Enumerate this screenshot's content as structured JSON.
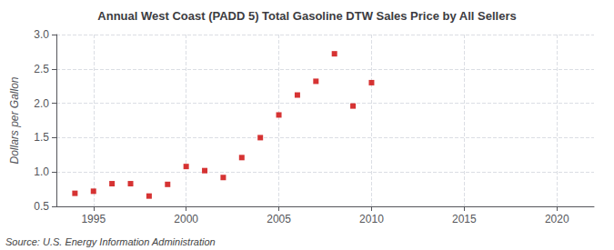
{
  "chart_data": {
    "type": "scatter",
    "title": "Annual West Coast (PADD 5) Total Gasoline DTW Sales Price by All Sellers",
    "ylabel": "Dollars per Gallon",
    "source": "Source: U.S. Energy Information Administration",
    "x": [
      1994,
      1995,
      1996,
      1997,
      1998,
      1999,
      2000,
      2001,
      2002,
      2003,
      2004,
      2005,
      2006,
      2007,
      2008,
      2009,
      2010
    ],
    "values": [
      0.69,
      0.72,
      0.83,
      0.83,
      0.65,
      0.82,
      1.08,
      1.02,
      0.92,
      1.21,
      1.5,
      1.83,
      2.12,
      2.32,
      2.72,
      1.96,
      2.3
    ],
    "color": "#cc0000",
    "marker": "square",
    "xlim": [
      1993,
      2022
    ],
    "xticks": [
      1995,
      2000,
      2005,
      2010,
      2015,
      2020
    ],
    "ylim": [
      0.5,
      3.0
    ],
    "yticks": [
      0.5,
      {
        "value": 1.0,
        "label": "1.0"
      },
      1.5,
      {
        "value": 2.0,
        "label": "2.0"
      },
      2.5,
      {
        "value": 3.0,
        "label": "3.0"
      }
    ],
    "grid": true
  }
}
